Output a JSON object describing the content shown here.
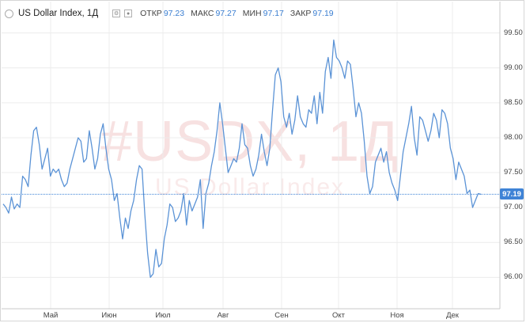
{
  "header": {
    "title": "US Dollar Index, 1Д",
    "icons": [
      "status-dot-icon",
      "settings-icon",
      "eye-icon"
    ],
    "open_label": "ОТКР",
    "open_value": "97.23",
    "high_label": "МАКС",
    "high_value": "97.27",
    "low_label": "МИН",
    "low_value": "97.17",
    "close_label": "ЗАКР",
    "close_value": "97.19"
  },
  "watermark": {
    "symbol": "#USDX, 1Д",
    "name": "US Dollar Index"
  },
  "last_price": "97.19",
  "colors": {
    "line": "#5b93d6",
    "accent": "#3f83d6",
    "grid": "#ececec"
  },
  "chart_data": {
    "type": "line",
    "series": [
      {
        "values": [
          97.05,
          97.0,
          96.92,
          97.15,
          96.98,
          97.05,
          97.0,
          97.45,
          97.4,
          97.3,
          97.75,
          98.1,
          98.15,
          97.9,
          97.55,
          97.7,
          97.85,
          97.45,
          97.55,
          97.5,
          97.55,
          97.4,
          97.3,
          97.35,
          97.55,
          97.7,
          97.85,
          98.0,
          97.95,
          97.65,
          97.7,
          98.1,
          97.85,
          97.55,
          97.7,
          98.05,
          98.2,
          97.85,
          97.55,
          97.4,
          97.1,
          97.2,
          96.85,
          96.55,
          96.85,
          96.7,
          96.95,
          97.1,
          97.4,
          97.6,
          97.55,
          96.9,
          96.35,
          96.0,
          96.05,
          96.4,
          96.15,
          96.2,
          96.55,
          96.75,
          97.05,
          97.0,
          96.8,
          96.85,
          96.95,
          97.2,
          96.75,
          97.1,
          96.95,
          97.05,
          97.15,
          97.4,
          96.7,
          97.2,
          97.35,
          97.6,
          97.8,
          98.1,
          98.5,
          98.2,
          97.85,
          97.5,
          97.6,
          97.7,
          97.65,
          97.85,
          98.2,
          97.9,
          97.85,
          97.6,
          97.45,
          97.55,
          97.75,
          98.05,
          97.8,
          97.6,
          97.85,
          98.4,
          98.9,
          99.0,
          98.8,
          98.3,
          98.15,
          98.35,
          98.05,
          98.25,
          98.6,
          98.3,
          98.2,
          98.15,
          98.4,
          98.35,
          98.6,
          98.2,
          98.65,
          98.35,
          98.95,
          99.15,
          98.85,
          99.4,
          99.15,
          99.1,
          99.0,
          98.85,
          99.1,
          99.05,
          98.7,
          98.3,
          98.5,
          98.35,
          97.95,
          97.45,
          97.2,
          97.3,
          97.65,
          97.75,
          97.85,
          97.65,
          97.8,
          97.5,
          97.35,
          97.25,
          97.1,
          97.45,
          97.8,
          98.0,
          98.2,
          98.45,
          98.0,
          97.75,
          98.3,
          98.25,
          98.1,
          97.95,
          98.1,
          98.35,
          98.25,
          98.0,
          98.4,
          98.35,
          98.2,
          97.85,
          97.7,
          97.4,
          97.65,
          97.55,
          97.45,
          97.2,
          97.25,
          97.0,
          97.1,
          97.2,
          97.19
        ]
      }
    ],
    "x_tick_labels": [
      "Май",
      "Июн",
      "Июл",
      "Авг",
      "Сен",
      "Окт",
      "Ноя",
      "Дек"
    ],
    "y_tick_labels": [
      "99.50",
      "99.00",
      "98.50",
      "98.00",
      "97.50",
      "97.00",
      "96.50",
      "96.00"
    ],
    "ylim": [
      95.55,
      99.95
    ],
    "grid": true
  }
}
